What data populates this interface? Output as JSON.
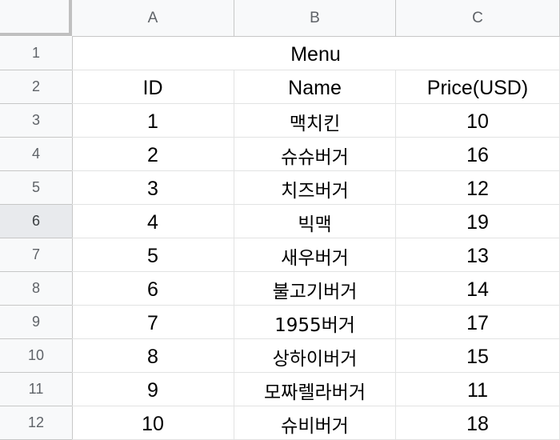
{
  "columns": [
    "A",
    "B",
    "C"
  ],
  "rows": [
    "1",
    "2",
    "3",
    "4",
    "5",
    "6",
    "7",
    "8",
    "9",
    "10",
    "11",
    "12"
  ],
  "selected_row": "6",
  "title_cell": "Menu",
  "headers": [
    "ID",
    "Name",
    "Price(USD)"
  ],
  "table": [
    [
      "1",
      "맥치킨",
      "10"
    ],
    [
      "2",
      "슈슈버거",
      "16"
    ],
    [
      "3",
      "치즈버거",
      "12"
    ],
    [
      "4",
      "빅맥",
      "19"
    ],
    [
      "5",
      "새우버거",
      "13"
    ],
    [
      "6",
      "불고기버거",
      "14"
    ],
    [
      "7",
      "1955버거",
      "17"
    ],
    [
      "8",
      "상하이버거",
      "15"
    ],
    [
      "9",
      "모짜렐라버거",
      "11"
    ],
    [
      "10",
      "슈비버거",
      "18"
    ]
  ],
  "colors": {
    "header_bg": "#f8f9fa",
    "selected_row_bg": "#e8eaed",
    "gridline": "#e2e3e3"
  }
}
